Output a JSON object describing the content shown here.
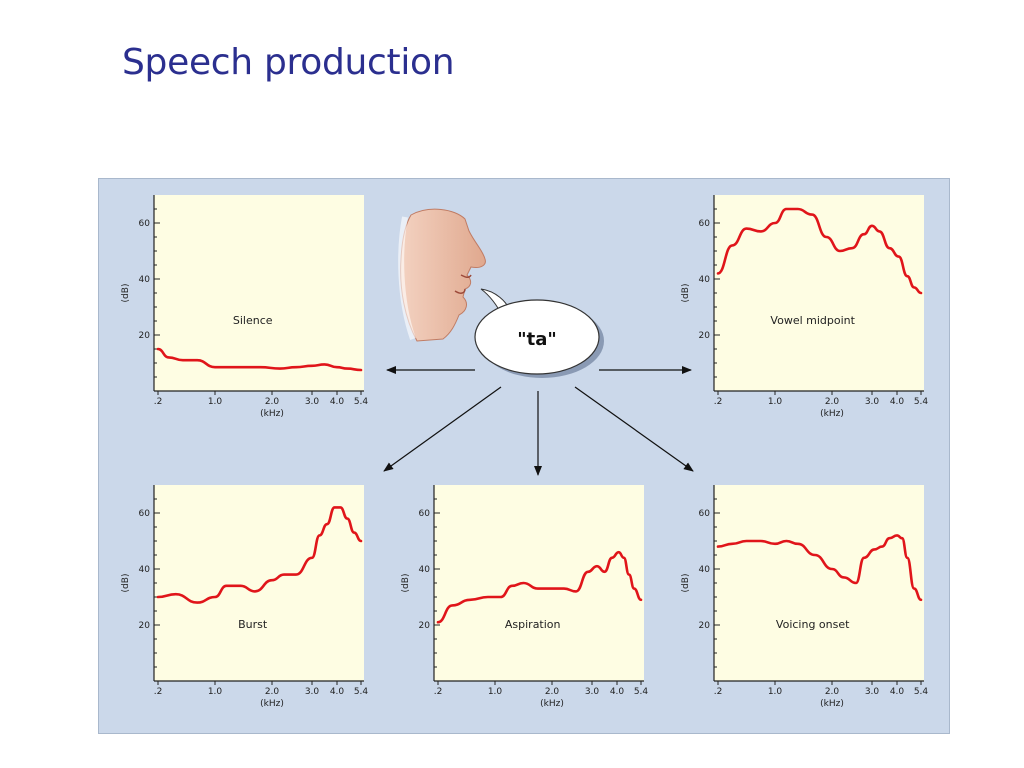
{
  "slide": {
    "title": "Speech production"
  },
  "speech_bubble": {
    "text": "\"ta\""
  },
  "colors": {
    "title": "#2b2f8f",
    "curve": "#e0151a",
    "panel": "#fefde3",
    "figure_bg": "#cbd8ea"
  },
  "chart_data": [
    {
      "type": "line",
      "label": "Silence",
      "xlabel": "(kHz)",
      "ylabel": "(dB)",
      "xticks": [
        ".2",
        "1.0",
        "2.0",
        "3.0",
        "4.0",
        "5.4"
      ],
      "yticks": [
        "20",
        "40",
        "60"
      ],
      "x": [
        0.2,
        0.35,
        0.55,
        0.75,
        1.0,
        1.4,
        1.8,
        2.2,
        2.6,
        3.0,
        3.5,
        4.0,
        4.6,
        5.4
      ],
      "y": [
        15,
        12,
        11,
        11,
        8.5,
        8.5,
        8.5,
        8,
        8.5,
        9,
        9.5,
        8.5,
        8,
        7.5
      ],
      "ylim": [
        0,
        70
      ]
    },
    {
      "type": "line",
      "label": "Vowel midpoint",
      "xlabel": "(kHz)",
      "ylabel": "(dB)",
      "xticks": [
        ".2",
        "1.0",
        "2.0",
        "3.0",
        "4.0",
        "5.4"
      ],
      "yticks": [
        "20",
        "40",
        "60"
      ],
      "x": [
        0.2,
        0.4,
        0.6,
        0.8,
        1.0,
        1.2,
        1.4,
        1.65,
        1.9,
        2.2,
        2.5,
        2.8,
        3.0,
        3.3,
        3.7,
        4.1,
        4.6,
        5.0,
        5.4
      ],
      "y": [
        42,
        52,
        58,
        57,
        60,
        65,
        65,
        63,
        55,
        50,
        51,
        56,
        59,
        57,
        51,
        48,
        41,
        37,
        35
      ],
      "ylim": [
        0,
        70
      ]
    },
    {
      "type": "line",
      "label": "Burst",
      "xlabel": "(kHz)",
      "ylabel": "(dB)",
      "xticks": [
        ".2",
        "1.0",
        "2.0",
        "3.0",
        "4.0",
        "5.4"
      ],
      "yticks": [
        "20",
        "40",
        "60"
      ],
      "x": [
        0.2,
        0.45,
        0.75,
        1.0,
        1.2,
        1.45,
        1.7,
        2.0,
        2.3,
        2.6,
        3.0,
        3.3,
        3.6,
        3.9,
        4.2,
        4.6,
        5.0,
        5.4
      ],
      "y": [
        30,
        31,
        28,
        30,
        34,
        34,
        32,
        36,
        38,
        38,
        44,
        52,
        56,
        62,
        62,
        58,
        53,
        50
      ],
      "ylim": [
        0,
        70
      ]
    },
    {
      "type": "line",
      "label": "Aspiration",
      "xlabel": "(kHz)",
      "ylabel": "(dB)",
      "xticks": [
        ".2",
        "1.0",
        "2.0",
        "3.0",
        "4.0",
        "5.4"
      ],
      "yticks": [
        "20",
        "40",
        "60"
      ],
      "x": [
        0.2,
        0.4,
        0.65,
        0.9,
        1.1,
        1.3,
        1.5,
        1.75,
        2.0,
        2.3,
        2.6,
        2.9,
        3.2,
        3.5,
        3.8,
        4.1,
        4.4,
        4.7,
        5.0,
        5.4
      ],
      "y": [
        21,
        27,
        29,
        30,
        30,
        34,
        35,
        33,
        33,
        33,
        32,
        39,
        41,
        39,
        44,
        46,
        44,
        38,
        33,
        29
      ],
      "ylim": [
        0,
        70
      ]
    },
    {
      "type": "line",
      "label": "Voicing onset",
      "xlabel": "(kHz)",
      "ylabel": "(dB)",
      "xticks": [
        ".2",
        "1.0",
        "2.0",
        "3.0",
        "4.0",
        "5.4"
      ],
      "yticks": [
        "20",
        "40",
        "60"
      ],
      "x": [
        0.2,
        0.4,
        0.6,
        0.8,
        1.0,
        1.2,
        1.4,
        1.7,
        2.0,
        2.3,
        2.6,
        2.8,
        3.1,
        3.4,
        3.7,
        4.0,
        4.3,
        4.6,
        5.0,
        5.4
      ],
      "y": [
        48,
        49,
        50,
        50,
        49,
        50,
        49,
        45,
        40,
        37,
        35,
        44,
        47,
        48,
        51,
        52,
        51,
        44,
        33,
        29
      ],
      "ylim": [
        0,
        70
      ]
    }
  ]
}
